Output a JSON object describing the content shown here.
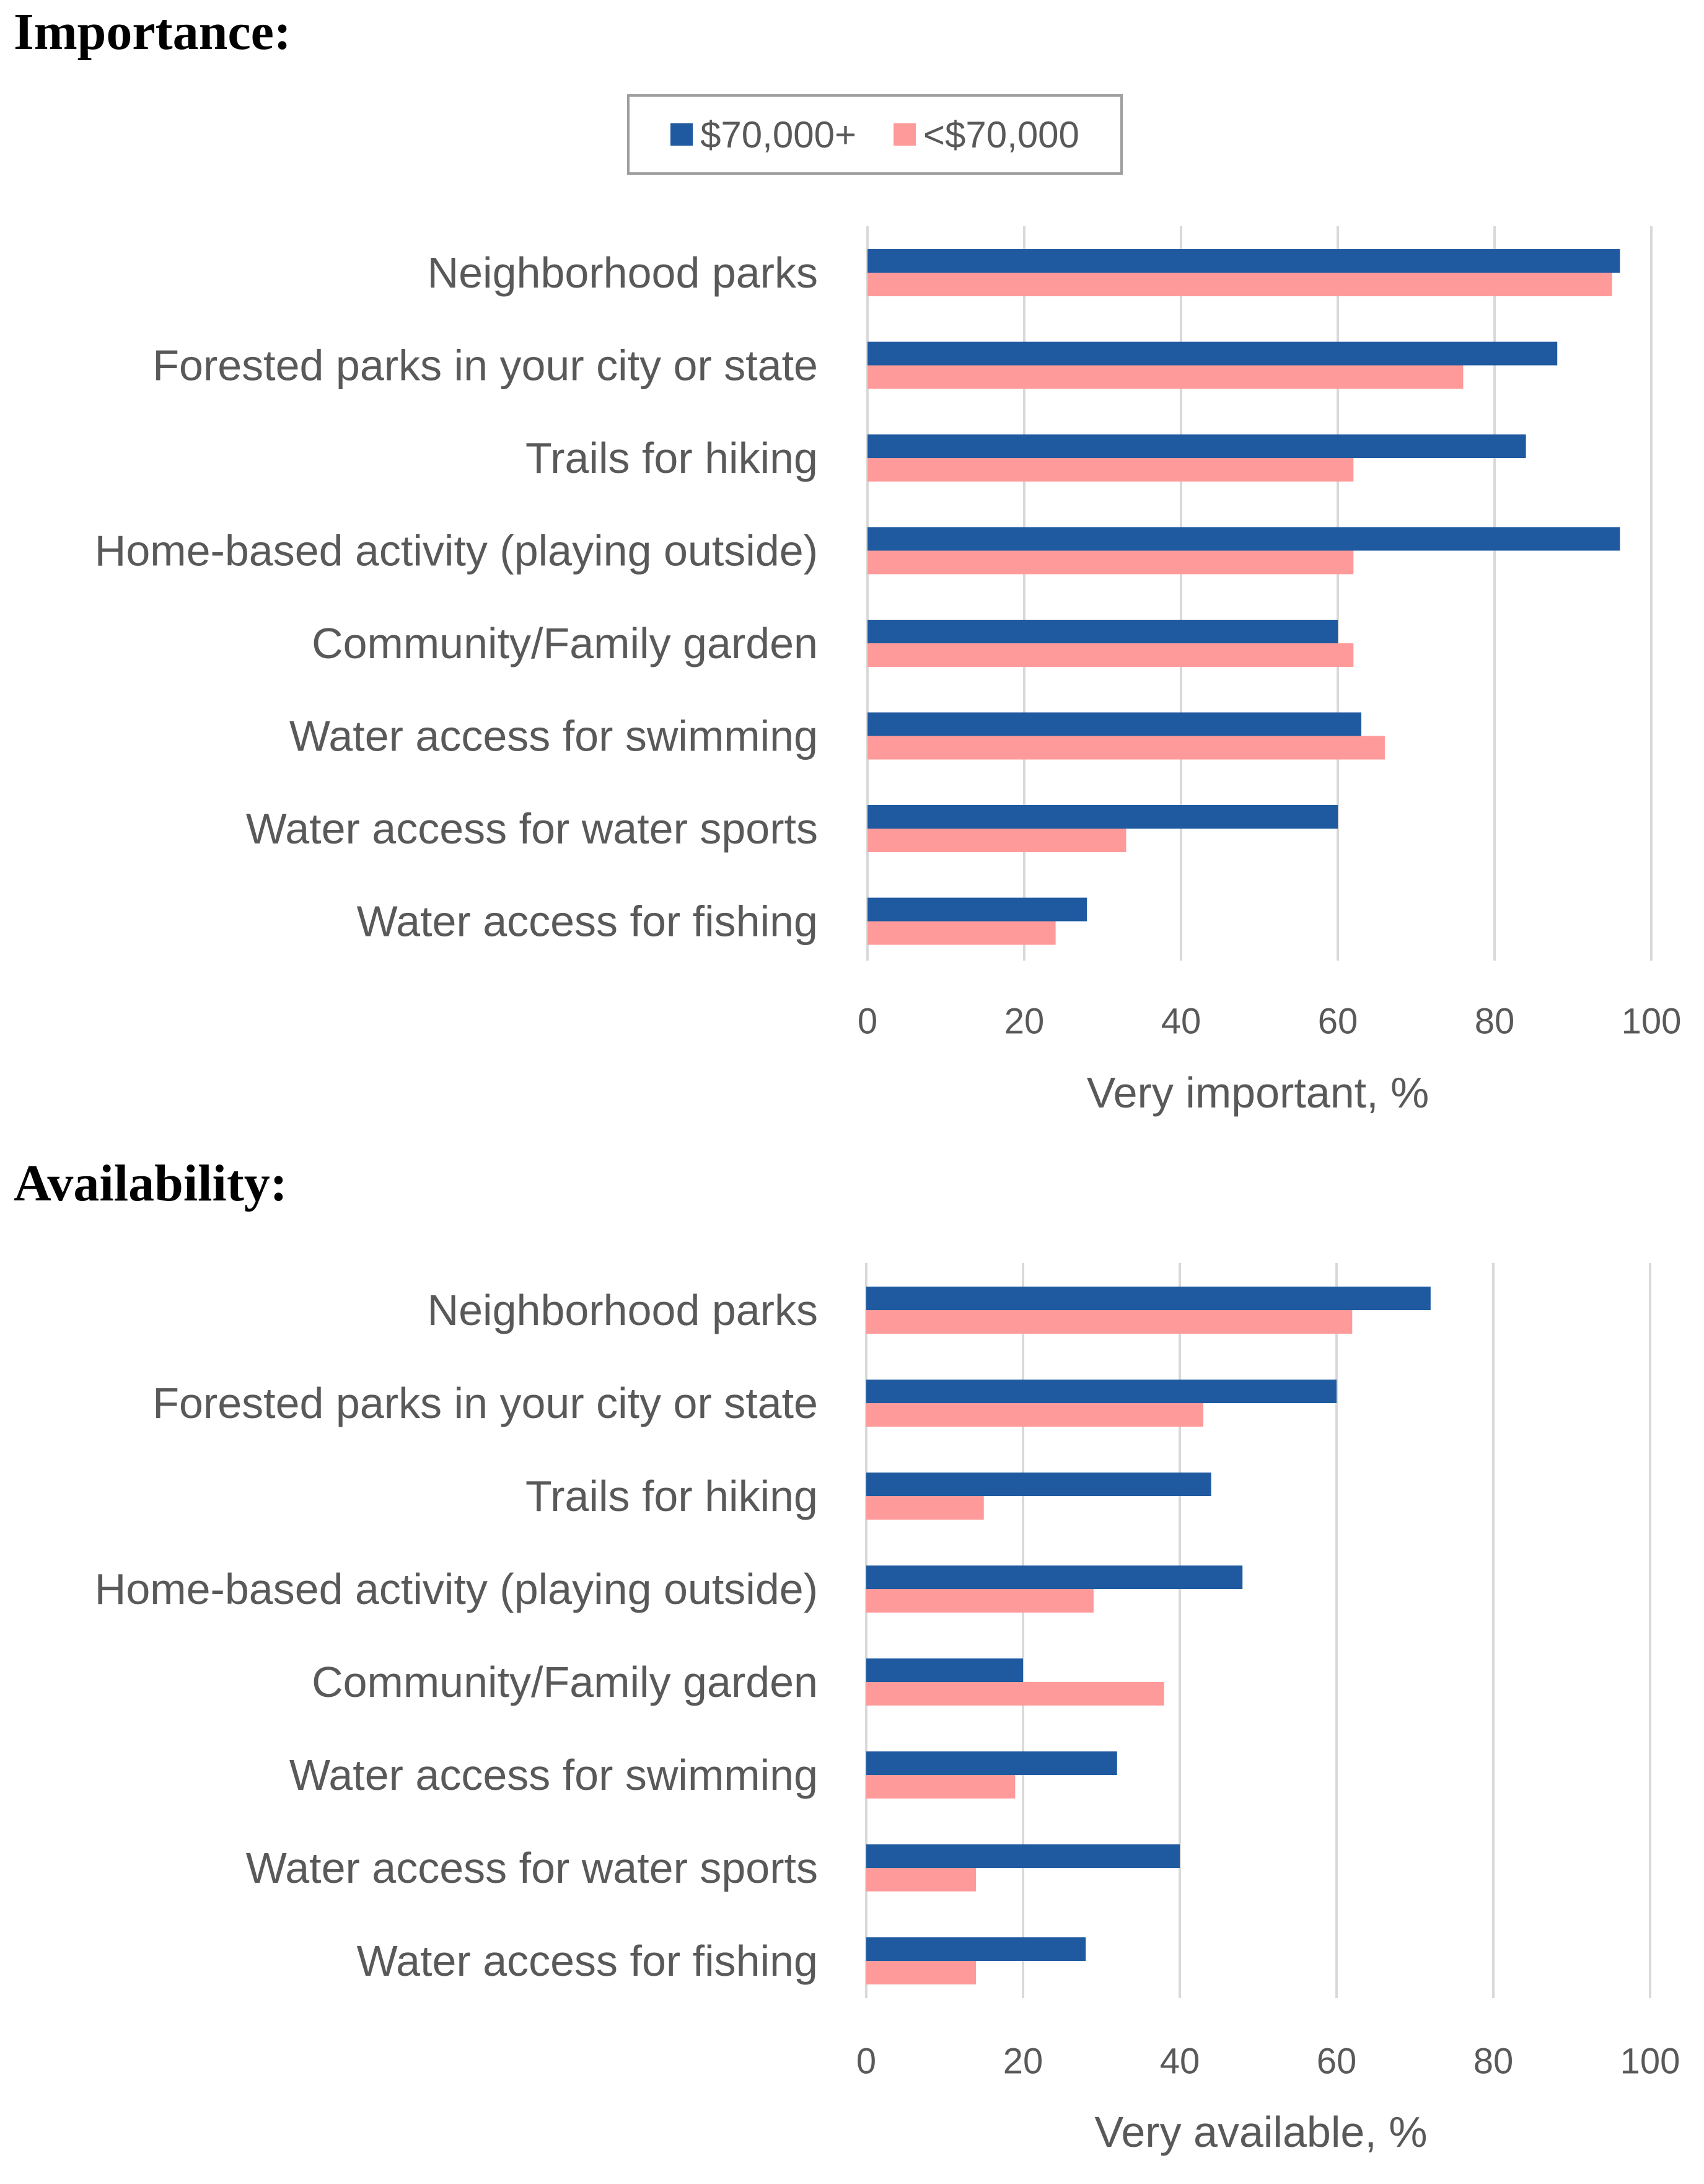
{
  "sections": {
    "importance_title": "Importance:",
    "availability_title": "Availability:"
  },
  "legend": {
    "items": [
      {
        "label": "$70,000+",
        "color": "#1f5aa0"
      },
      {
        "label": "<$70,000",
        "color": "#ff9a9a"
      }
    ]
  },
  "colors": {
    "grid": "#d9d9d9",
    "text": "#595959"
  },
  "chart_data": [
    {
      "type": "bar",
      "orientation": "horizontal",
      "title": "Importance:",
      "categories": [
        "Neighborhood parks",
        "Forested parks in your city or state",
        "Trails for hiking",
        "Home-based activity (playing outside)",
        "Community/Family garden",
        "Water access for swimming",
        "Water access for water sports",
        "Water access for fishing"
      ],
      "series": [
        {
          "name": "$70,000+",
          "values": [
            96,
            88,
            84,
            96,
            60,
            63,
            60,
            28
          ]
        },
        {
          "name": "<$70,000",
          "values": [
            95,
            76,
            62,
            62,
            62,
            66,
            33,
            24
          ]
        }
      ],
      "xlabel": "Very important, %",
      "xlim": [
        0,
        100
      ],
      "xticks": [
        0,
        20,
        40,
        60,
        80,
        100
      ],
      "grid": true,
      "legend": "top-center"
    },
    {
      "type": "bar",
      "orientation": "horizontal",
      "title": "Availability:",
      "categories": [
        "Neighborhood parks",
        "Forested parks in your city or state",
        "Trails for hiking",
        "Home-based activity (playing outside)",
        "Community/Family garden",
        "Water access for swimming",
        "Water access for water sports",
        "Water access for fishing"
      ],
      "series": [
        {
          "name": "$70,000+",
          "values": [
            72,
            60,
            44,
            48,
            20,
            32,
            40,
            28
          ]
        },
        {
          "name": "<$70,000",
          "values": [
            62,
            43,
            15,
            29,
            38,
            19,
            14,
            14
          ]
        }
      ],
      "xlabel": "Very available, %",
      "xlim": [
        0,
        100
      ],
      "xticks": [
        0,
        20,
        40,
        60,
        80,
        100
      ],
      "grid": true,
      "legend": "none"
    }
  ]
}
